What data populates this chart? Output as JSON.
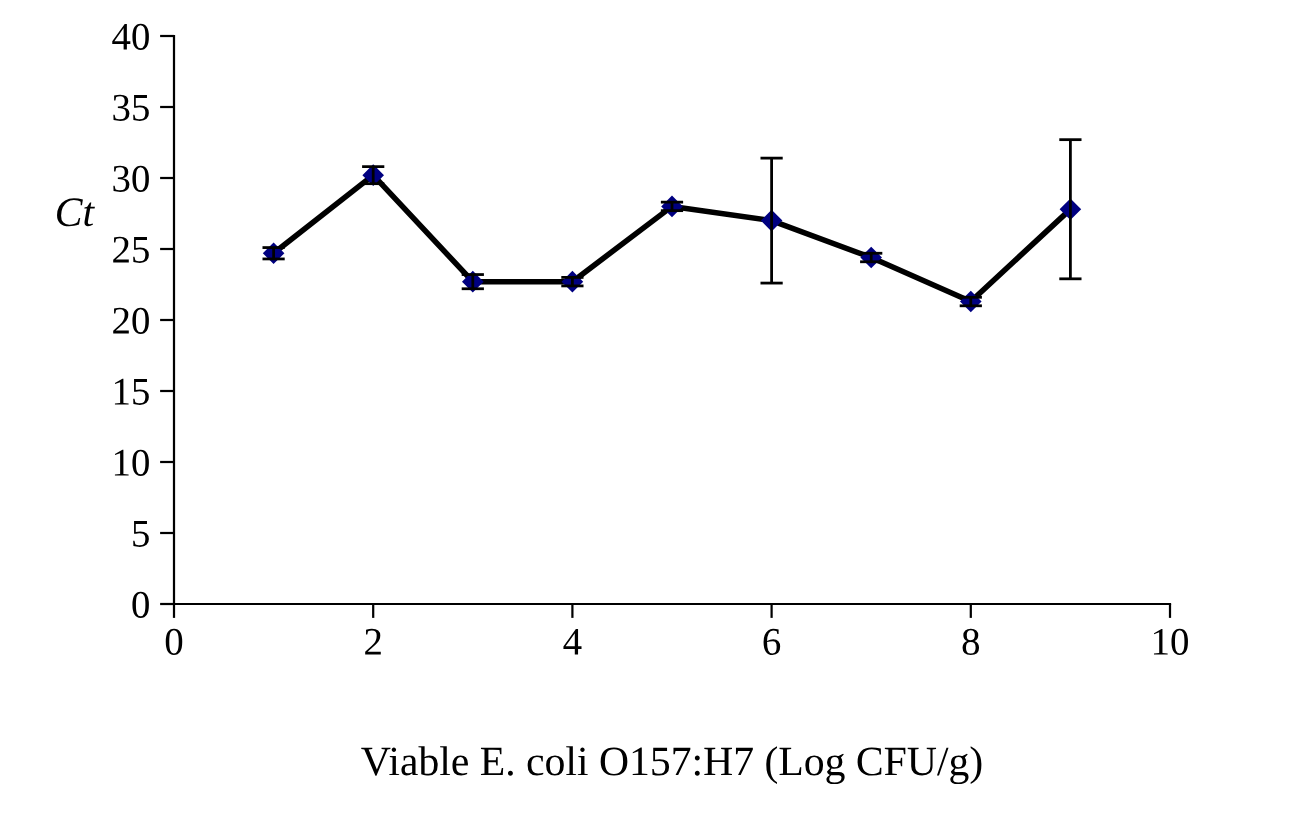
{
  "chart_data": {
    "type": "line",
    "xlabel": "Viable E. coli O157:H7 (Log CFU/g)",
    "ylabel": "Ct",
    "x": [
      1,
      2,
      3,
      4,
      5,
      6,
      7,
      8,
      9
    ],
    "series": [
      {
        "color": "#000080",
        "values": [
          24.7,
          30.2,
          22.7,
          22.7,
          28.0,
          27.0,
          24.4,
          21.3,
          27.8
        ],
        "errors": [
          0.4,
          0.6,
          0.5,
          0.3,
          0.3,
          4.4,
          0.3,
          0.3,
          4.9
        ]
      }
    ],
    "xlim": [
      0,
      10
    ],
    "xticks": [
      0,
      2,
      4,
      6,
      8,
      10
    ],
    "ylim": [
      0,
      40
    ],
    "yticks": [
      0,
      5,
      10,
      15,
      20,
      25,
      30,
      35,
      40
    ],
    "grid": false,
    "marker": "diamond",
    "line_style": "solid"
  }
}
